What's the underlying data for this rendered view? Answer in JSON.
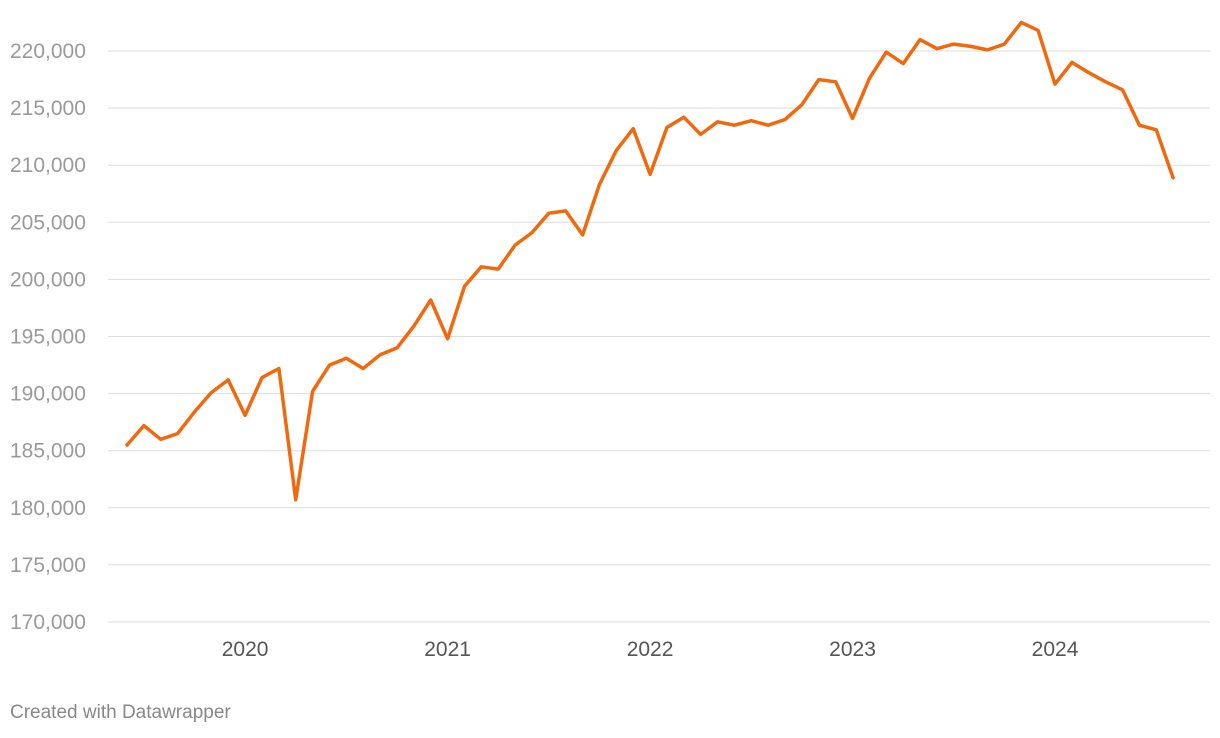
{
  "colors": {
    "line": "#f2680c",
    "grid": "#dddddd",
    "ytick": "#9a9a9a",
    "xtick": "#555555"
  },
  "footer": {
    "credit": "Created with Datawrapper"
  },
  "chart_data": {
    "type": "line",
    "title": "",
    "xlabel": "",
    "ylabel": "",
    "grid": true,
    "legend": "none",
    "ylim": [
      170000,
      220000
    ],
    "yticks": [
      170000,
      175000,
      180000,
      185000,
      190000,
      195000,
      200000,
      205000,
      210000,
      215000,
      220000
    ],
    "ytick_labels": [
      "170,000",
      "175,000",
      "180,000",
      "185,000",
      "190,000",
      "195,000",
      "200,000",
      "205,000",
      "210,000",
      "215,000",
      "220,000"
    ],
    "xlim": [
      "2019-06",
      "2024-09"
    ],
    "xticks": [
      "2020-01",
      "2021-01",
      "2022-01",
      "2023-01",
      "2024-01"
    ],
    "xtick_labels": [
      "2020",
      "2021",
      "2022",
      "2023",
      "2024"
    ],
    "series": [
      {
        "color": "#f2680c",
        "points": [
          [
            "2019-06",
            185500
          ],
          [
            "2019-07",
            187200
          ],
          [
            "2019-08",
            186000
          ],
          [
            "2019-09",
            186500
          ],
          [
            "2019-10",
            188400
          ],
          [
            "2019-11",
            190100
          ],
          [
            "2019-12",
            191200
          ],
          [
            "2020-01",
            188100
          ],
          [
            "2020-02",
            191400
          ],
          [
            "2020-03",
            192200
          ],
          [
            "2020-04",
            180700
          ],
          [
            "2020-05",
            190200
          ],
          [
            "2020-06",
            192500
          ],
          [
            "2020-07",
            193100
          ],
          [
            "2020-08",
            192200
          ],
          [
            "2020-09",
            193400
          ],
          [
            "2020-10",
            194000
          ],
          [
            "2020-11",
            195900
          ],
          [
            "2020-12",
            198200
          ],
          [
            "2021-01",
            194800
          ],
          [
            "2021-02",
            199400
          ],
          [
            "2021-03",
            201100
          ],
          [
            "2021-04",
            200900
          ],
          [
            "2021-05",
            203000
          ],
          [
            "2021-06",
            204100
          ],
          [
            "2021-07",
            205800
          ],
          [
            "2021-08",
            206000
          ],
          [
            "2021-09",
            203900
          ],
          [
            "2021-10",
            208300
          ],
          [
            "2021-11",
            211300
          ],
          [
            "2021-12",
            213200
          ],
          [
            "2022-01",
            209200
          ],
          [
            "2022-02",
            213300
          ],
          [
            "2022-03",
            214200
          ],
          [
            "2022-04",
            212700
          ],
          [
            "2022-05",
            213800
          ],
          [
            "2022-06",
            213500
          ],
          [
            "2022-07",
            213900
          ],
          [
            "2022-08",
            213500
          ],
          [
            "2022-09",
            214000
          ],
          [
            "2022-10",
            215300
          ],
          [
            "2022-11",
            217500
          ],
          [
            "2022-12",
            217300
          ],
          [
            "2023-01",
            214100
          ],
          [
            "2023-02",
            217600
          ],
          [
            "2023-03",
            219900
          ],
          [
            "2023-04",
            218900
          ],
          [
            "2023-05",
            221000
          ],
          [
            "2023-06",
            220200
          ],
          [
            "2023-07",
            220600
          ],
          [
            "2023-08",
            220400
          ],
          [
            "2023-09",
            220100
          ],
          [
            "2023-10",
            220600
          ],
          [
            "2023-11",
            222500
          ],
          [
            "2023-12",
            221800
          ],
          [
            "2024-01",
            217100
          ],
          [
            "2024-02",
            219000
          ],
          [
            "2024-03",
            218100
          ],
          [
            "2024-04",
            217300
          ],
          [
            "2024-05",
            216600
          ],
          [
            "2024-06",
            213500
          ],
          [
            "2024-07",
            213100
          ],
          [
            "2024-08",
            208900
          ]
        ]
      }
    ]
  }
}
